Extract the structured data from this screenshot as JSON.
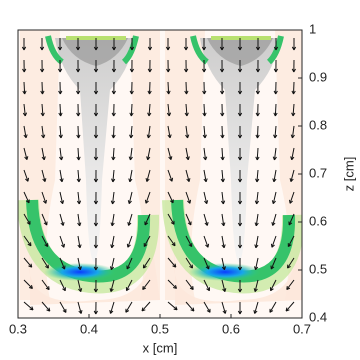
{
  "chart_data": {
    "type": "quiver",
    "xlabel": "x [cm]",
    "ylabel": "z [cm]",
    "xlim": [
      0.3,
      0.7
    ],
    "xticks": [
      0.3,
      0.4,
      0.5,
      0.6,
      0.7
    ],
    "ylim": [
      0.4,
      1
    ],
    "yticks": [
      0.4,
      0.5,
      0.6,
      0.7,
      0.8,
      0.9,
      1
    ],
    "yaxis_side": "right"
  }
}
